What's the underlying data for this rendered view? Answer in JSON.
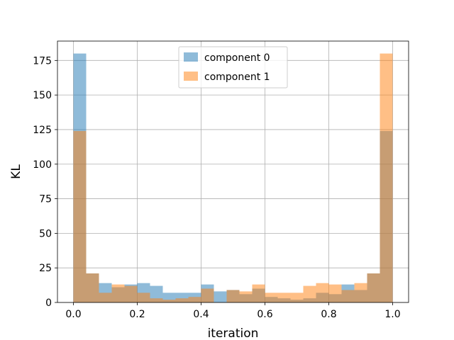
{
  "chart_data": {
    "type": "bar",
    "subtype": "overlaid-histogram",
    "xlabel": "iteration",
    "ylabel": "KL",
    "xlim": [
      -0.05,
      1.05
    ],
    "ylim": [
      0,
      189
    ],
    "xticks": [
      0.0,
      0.2,
      0.4,
      0.6,
      0.8,
      1.0
    ],
    "xtick_labels": [
      "0.0",
      "0.2",
      "0.4",
      "0.6",
      "0.8",
      "1.0"
    ],
    "yticks": [
      0,
      25,
      50,
      75,
      100,
      125,
      150,
      175
    ],
    "ytick_labels": [
      "0",
      "25",
      "50",
      "75",
      "100",
      "125",
      "150",
      "175"
    ],
    "grid": true,
    "legend_position": "top-center",
    "bin_edges": [
      0.0,
      0.04,
      0.08,
      0.12,
      0.16,
      0.2,
      0.24,
      0.28,
      0.32,
      0.36,
      0.4,
      0.44,
      0.48,
      0.52,
      0.56,
      0.6,
      0.64,
      0.68,
      0.72,
      0.76,
      0.8,
      0.84,
      0.88,
      0.92,
      0.96,
      1.0
    ],
    "series": [
      {
        "name": "component 0",
        "color": "#1f77b4",
        "alpha": 0.5,
        "values": [
          180,
          21,
          14,
          11,
          13,
          14,
          12,
          7,
          7,
          7,
          13,
          8,
          9,
          6,
          10,
          4,
          3,
          2,
          3,
          7,
          6,
          13,
          9,
          21,
          124
        ]
      },
      {
        "name": "component 1",
        "color": "#ff7f0e",
        "alpha": 0.5,
        "values": [
          124,
          21,
          7,
          13,
          12,
          7,
          3,
          2,
          3,
          4,
          10,
          0,
          9,
          8,
          13,
          7,
          7,
          7,
          12,
          14,
          13,
          9,
          14,
          21,
          180
        ]
      }
    ]
  }
}
